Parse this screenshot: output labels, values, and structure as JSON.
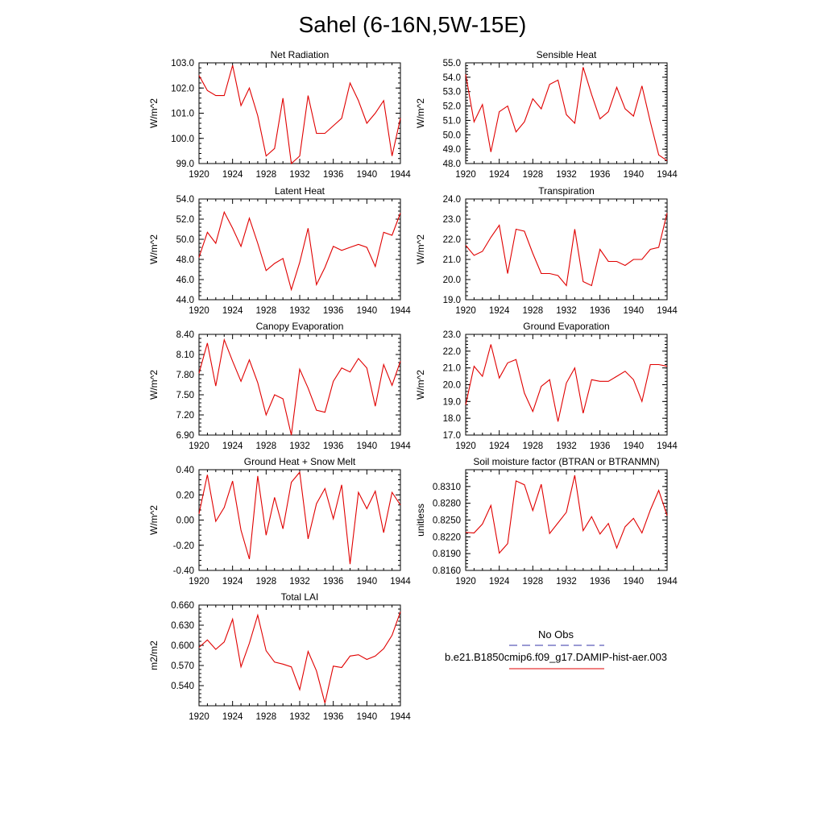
{
  "page": {
    "title": "Sahel (6-16N,5W-15E)"
  },
  "legend": {
    "obs_label": "No Obs",
    "model_label": "b.e21.B1850cmip6.f09_g17.DAMIP-hist-aer.003",
    "obs_color": "#3333aa",
    "model_color": "#e00000"
  },
  "chart_data": [
    {
      "type": "line",
      "title": "Net Radiation",
      "ylabel": "W/m^2",
      "xlim": [
        1920,
        1944
      ],
      "ylim": [
        99.0,
        103.0
      ],
      "xticks": [
        1920,
        1924,
        1928,
        1932,
        1936,
        1940,
        1944
      ],
      "yticks": [
        99.0,
        100.0,
        101.0,
        102.0,
        103.0
      ],
      "ytick_labels": [
        "99.0",
        "100.0",
        "101.0",
        "102.0",
        "103.0"
      ],
      "x": [
        1920,
        1921,
        1922,
        1923,
        1924,
        1925,
        1926,
        1927,
        1928,
        1929,
        1930,
        1931,
        1932,
        1933,
        1934,
        1935,
        1936,
        1937,
        1938,
        1939,
        1940,
        1941,
        1942,
        1943,
        1944
      ],
      "values": [
        102.5,
        101.9,
        101.7,
        101.7,
        102.9,
        101.3,
        102.0,
        100.9,
        99.3,
        99.6,
        101.6,
        99.0,
        99.3,
        101.7,
        100.2,
        100.2,
        100.5,
        100.8,
        102.2,
        101.5,
        100.6,
        101.0,
        101.5,
        99.3,
        100.8
      ]
    },
    {
      "type": "line",
      "title": "Sensible Heat",
      "ylabel": "W/m^2",
      "xlim": [
        1920,
        1944
      ],
      "ylim": [
        48.0,
        55.0
      ],
      "xticks": [
        1920,
        1924,
        1928,
        1932,
        1936,
        1940,
        1944
      ],
      "yticks": [
        48.0,
        49.0,
        50.0,
        51.0,
        52.0,
        53.0,
        54.0,
        55.0
      ],
      "ytick_labels": [
        "48.0",
        "49.0",
        "50.0",
        "51.0",
        "52.0",
        "53.0",
        "54.0",
        "55.0"
      ],
      "x": [
        1920,
        1921,
        1922,
        1923,
        1924,
        1925,
        1926,
        1927,
        1928,
        1929,
        1930,
        1931,
        1932,
        1933,
        1934,
        1935,
        1936,
        1937,
        1938,
        1939,
        1940,
        1941,
        1942,
        1943,
        1944
      ],
      "values": [
        54.2,
        50.9,
        52.1,
        48.8,
        51.6,
        52.0,
        50.2,
        50.9,
        52.5,
        51.8,
        53.5,
        53.8,
        51.4,
        50.8,
        54.7,
        52.8,
        51.1,
        51.6,
        53.3,
        51.8,
        51.3,
        53.4,
        50.9,
        48.6,
        48.2
      ]
    },
    {
      "type": "line",
      "title": "Latent Heat",
      "ylabel": "W/m^2",
      "xlim": [
        1920,
        1944
      ],
      "ylim": [
        44.0,
        54.0
      ],
      "xticks": [
        1920,
        1924,
        1928,
        1932,
        1936,
        1940,
        1944
      ],
      "yticks": [
        44.0,
        46.0,
        48.0,
        50.0,
        52.0,
        54.0
      ],
      "ytick_labels": [
        "44.0",
        "46.0",
        "48.0",
        "50.0",
        "52.0",
        "54.0"
      ],
      "x": [
        1920,
        1921,
        1922,
        1923,
        1924,
        1925,
        1926,
        1927,
        1928,
        1929,
        1930,
        1931,
        1932,
        1933,
        1934,
        1935,
        1936,
        1937,
        1938,
        1939,
        1940,
        1941,
        1942,
        1943,
        1944
      ],
      "values": [
        48.2,
        50.7,
        49.6,
        52.7,
        51.1,
        49.3,
        52.1,
        49.6,
        46.9,
        47.6,
        48.1,
        45.0,
        47.7,
        51.1,
        45.5,
        47.2,
        49.3,
        48.9,
        49.2,
        49.5,
        49.2,
        47.3,
        50.7,
        50.4,
        52.6
      ]
    },
    {
      "type": "line",
      "title": "Transpiration",
      "ylabel": "W/m^2",
      "xlim": [
        1920,
        1944
      ],
      "ylim": [
        19.0,
        24.0
      ],
      "xticks": [
        1920,
        1924,
        1928,
        1932,
        1936,
        1940,
        1944
      ],
      "yticks": [
        19.0,
        20.0,
        21.0,
        22.0,
        23.0,
        24.0
      ],
      "ytick_labels": [
        "19.0",
        "20.0",
        "21.0",
        "22.0",
        "23.0",
        "24.0"
      ],
      "x": [
        1920,
        1921,
        1922,
        1923,
        1924,
        1925,
        1926,
        1927,
        1928,
        1929,
        1930,
        1931,
        1932,
        1933,
        1934,
        1935,
        1936,
        1937,
        1938,
        1939,
        1940,
        1941,
        1942,
        1943,
        1944
      ],
      "values": [
        21.7,
        21.2,
        21.4,
        22.1,
        22.7,
        20.3,
        22.5,
        22.4,
        21.3,
        20.3,
        20.3,
        20.2,
        19.7,
        22.5,
        19.9,
        19.7,
        21.5,
        20.9,
        20.9,
        20.7,
        21.0,
        21.0,
        21.5,
        21.6,
        23.3
      ]
    },
    {
      "type": "line",
      "title": "Canopy Evaporation",
      "ylabel": "W/m^2",
      "xlim": [
        1920,
        1944
      ],
      "ylim": [
        6.9,
        8.4
      ],
      "xticks": [
        1920,
        1924,
        1928,
        1932,
        1936,
        1940,
        1944
      ],
      "yticks": [
        6.9,
        7.2,
        7.5,
        7.8,
        8.1,
        8.4
      ],
      "ytick_labels": [
        "6.90",
        "7.20",
        "7.50",
        "7.80",
        "8.10",
        "8.40"
      ],
      "x": [
        1920,
        1921,
        1922,
        1923,
        1924,
        1925,
        1926,
        1927,
        1928,
        1929,
        1930,
        1931,
        1932,
        1933,
        1934,
        1935,
        1936,
        1937,
        1938,
        1939,
        1940,
        1941,
        1942,
        1943,
        1944
      ],
      "values": [
        7.82,
        8.27,
        7.63,
        8.32,
        8.0,
        7.7,
        8.02,
        7.68,
        7.2,
        7.5,
        7.44,
        6.9,
        7.88,
        7.6,
        7.27,
        7.24,
        7.7,
        7.9,
        7.84,
        8.04,
        7.9,
        7.33,
        7.95,
        7.64,
        8.0
      ]
    },
    {
      "type": "line",
      "title": "Ground Evaporation",
      "ylabel": "W/m^2",
      "xlim": [
        1920,
        1944
      ],
      "ylim": [
        17.0,
        23.0
      ],
      "xticks": [
        1920,
        1924,
        1928,
        1932,
        1936,
        1940,
        1944
      ],
      "yticks": [
        17.0,
        18.0,
        19.0,
        20.0,
        21.0,
        22.0,
        23.0
      ],
      "ytick_labels": [
        "17.0",
        "18.0",
        "19.0",
        "20.0",
        "21.0",
        "22.0",
        "23.0"
      ],
      "x": [
        1920,
        1921,
        1922,
        1923,
        1924,
        1925,
        1926,
        1927,
        1928,
        1929,
        1930,
        1931,
        1932,
        1933,
        1934,
        1935,
        1936,
        1937,
        1938,
        1939,
        1940,
        1941,
        1942,
        1943,
        1944
      ],
      "values": [
        18.8,
        21.1,
        20.5,
        22.4,
        20.4,
        21.3,
        21.5,
        19.5,
        18.4,
        19.9,
        20.3,
        17.8,
        20.1,
        21.0,
        18.3,
        20.3,
        20.2,
        20.2,
        20.5,
        20.8,
        20.3,
        19.0,
        21.2,
        21.2,
        21.1
      ]
    },
    {
      "type": "line",
      "title": "Ground Heat + Snow Melt",
      "ylabel": "W/m^2",
      "xlim": [
        1920,
        1944
      ],
      "ylim": [
        -0.4,
        0.4
      ],
      "xticks": [
        1920,
        1924,
        1928,
        1932,
        1936,
        1940,
        1944
      ],
      "yticks": [
        -0.4,
        -0.2,
        0.0,
        0.2,
        0.4
      ],
      "ytick_labels": [
        "-0.40",
        "-0.20",
        "0.00",
        "0.20",
        "0.40"
      ],
      "x": [
        1920,
        1921,
        1922,
        1923,
        1924,
        1925,
        1926,
        1927,
        1928,
        1929,
        1930,
        1931,
        1932,
        1933,
        1934,
        1935,
        1936,
        1937,
        1938,
        1939,
        1940,
        1941,
        1942,
        1943,
        1944
      ],
      "values": [
        0.05,
        0.36,
        -0.01,
        0.1,
        0.31,
        -0.08,
        -0.31,
        0.35,
        -0.12,
        0.18,
        -0.07,
        0.3,
        0.38,
        -0.15,
        0.13,
        0.25,
        0.01,
        0.28,
        -0.35,
        0.22,
        0.09,
        0.23,
        -0.1,
        0.22,
        0.12
      ]
    },
    {
      "type": "line",
      "title": "Soil moisture factor (BTRAN or BTRANMN)",
      "ylabel": "unitless",
      "xlim": [
        1920,
        1944
      ],
      "ylim": [
        0.816,
        0.834
      ],
      "xticks": [
        1920,
        1924,
        1928,
        1932,
        1936,
        1940,
        1944
      ],
      "yticks": [
        0.816,
        0.819,
        0.822,
        0.825,
        0.828,
        0.831
      ],
      "ytick_labels": [
        "0.8160",
        "0.8190",
        "0.8220",
        "0.8250",
        "0.8280",
        "0.8310"
      ],
      "x": [
        1920,
        1921,
        1922,
        1923,
        1924,
        1925,
        1926,
        1927,
        1928,
        1929,
        1930,
        1931,
        1932,
        1933,
        1934,
        1935,
        1936,
        1937,
        1938,
        1939,
        1940,
        1941,
        1942,
        1943,
        1944
      ],
      "values": [
        0.8228,
        0.8227,
        0.8243,
        0.8276,
        0.8191,
        0.8208,
        0.832,
        0.8313,
        0.8267,
        0.8314,
        0.8226,
        0.8245,
        0.8264,
        0.833,
        0.8231,
        0.8256,
        0.8225,
        0.8244,
        0.82,
        0.8238,
        0.8253,
        0.8227,
        0.8268,
        0.8303,
        0.8258
      ]
    },
    {
      "type": "line",
      "title": "Total LAI",
      "ylabel": "m2/m2",
      "xlim": [
        1920,
        1944
      ],
      "ylim": [
        0.51,
        0.66
      ],
      "xticks": [
        1920,
        1924,
        1928,
        1932,
        1936,
        1940,
        1944
      ],
      "yticks": [
        0.54,
        0.57,
        0.6,
        0.63,
        0.66
      ],
      "ytick_labels": [
        "0.540",
        "0.570",
        "0.600",
        "0.630",
        "0.660"
      ],
      "x": [
        1920,
        1921,
        1922,
        1923,
        1924,
        1925,
        1926,
        1927,
        1928,
        1929,
        1930,
        1931,
        1932,
        1933,
        1934,
        1935,
        1936,
        1937,
        1938,
        1939,
        1940,
        1941,
        1942,
        1943,
        1944
      ],
      "values": [
        0.597,
        0.608,
        0.594,
        0.605,
        0.639,
        0.568,
        0.603,
        0.645,
        0.592,
        0.575,
        0.572,
        0.568,
        0.534,
        0.591,
        0.562,
        0.514,
        0.569,
        0.567,
        0.584,
        0.586,
        0.579,
        0.584,
        0.595,
        0.615,
        0.65
      ]
    }
  ]
}
